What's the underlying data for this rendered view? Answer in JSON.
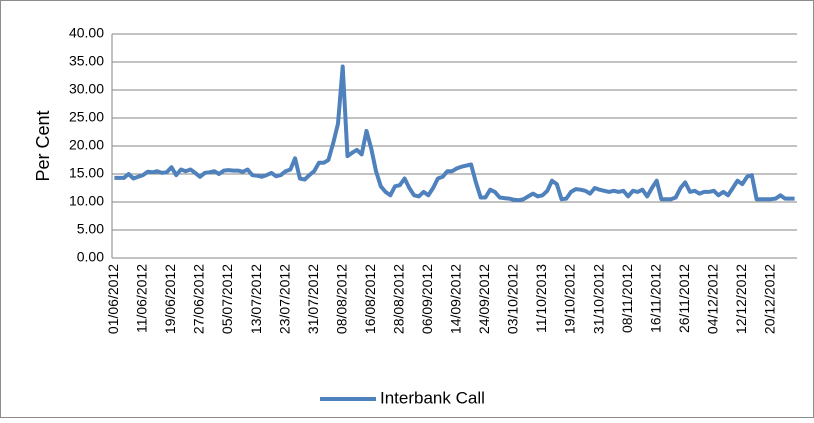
{
  "chart_data": {
    "type": "line",
    "y_label": "Per Cent",
    "categories": [
      "01/06/2012",
      null,
      null,
      null,
      null,
      null,
      "11/06/2012",
      null,
      null,
      null,
      null,
      null,
      "19/06/2012",
      null,
      null,
      null,
      null,
      null,
      "27/06/2012",
      null,
      null,
      null,
      null,
      null,
      "05/07/2012",
      null,
      null,
      null,
      null,
      null,
      "13/07/2012",
      null,
      null,
      null,
      null,
      null,
      "23/07/2012",
      null,
      null,
      null,
      null,
      null,
      "31/07/2012",
      null,
      null,
      null,
      null,
      null,
      "08/08/2012",
      null,
      null,
      null,
      null,
      null,
      "16/08/2012",
      null,
      null,
      null,
      null,
      null,
      "28/08/2012",
      null,
      null,
      null,
      null,
      null,
      "06/09/2012",
      null,
      null,
      null,
      null,
      null,
      "14/09/2012",
      null,
      null,
      null,
      null,
      null,
      "24/09/2012",
      null,
      null,
      null,
      null,
      null,
      "03/10/2012",
      null,
      null,
      null,
      null,
      null,
      "11/10/2013",
      null,
      null,
      null,
      null,
      null,
      "19/10/2012",
      null,
      null,
      null,
      null,
      null,
      "31/10/2012",
      null,
      null,
      null,
      null,
      null,
      "08/11/2012",
      null,
      null,
      null,
      null,
      null,
      "16/11/2012",
      null,
      null,
      null,
      null,
      null,
      "26/11/2012",
      null,
      null,
      null,
      null,
      null,
      "04/12/2012",
      null,
      null,
      null,
      null,
      null,
      "12/12/2012",
      null,
      null,
      null,
      null,
      null,
      "20/12/2012",
      null,
      null,
      null,
      null,
      null
    ],
    "series": [
      {
        "name": "Interbank Call",
        "color": "#4f81bd",
        "values": [
          14.3,
          14.3,
          14.3,
          15,
          14.2,
          14.5,
          14.8,
          15.4,
          15.3,
          15.5,
          15.2,
          15.3,
          16.2,
          14.8,
          15.8,
          15.5,
          15.8,
          15.2,
          14.5,
          15.2,
          15.3,
          15.5,
          15.0,
          15.6,
          15.7,
          15.6,
          15.6,
          15.4,
          15.8,
          14.8,
          14.7,
          14.5,
          14.8,
          15.2,
          14.6,
          14.8,
          15.5,
          15.8,
          17.8,
          14.2,
          14.0,
          14.8,
          15.5,
          17.0,
          17.0,
          17.5,
          20.5,
          24.0,
          34.2,
          18.2,
          18.8,
          19.3,
          18.5,
          22.7,
          19.5,
          15.5,
          12.8,
          11.8,
          11.2,
          12.8,
          13.0,
          14.2,
          12.5,
          11.2,
          11.0,
          11.8,
          11.2,
          12.5,
          14.2,
          14.5,
          15.5,
          15.5,
          16.0,
          16.3,
          16.5,
          16.7,
          13.5,
          10.8,
          10.8,
          12.2,
          11.8,
          10.8,
          10.7,
          10.6,
          10.4,
          10.3,
          10.5,
          11.0,
          11.5,
          11.0,
          11.2,
          12.0,
          13.8,
          13.2,
          10.5,
          10.6,
          11.8,
          12.3,
          12.2,
          12.0,
          11.5,
          12.5,
          12.2,
          12.0,
          11.8,
          12.0,
          11.8,
          12.0,
          11.0,
          12.0,
          11.8,
          12.2,
          11.0,
          12.5,
          13.8,
          10.5,
          10.5,
          10.5,
          10.8,
          12.5,
          13.5,
          11.8,
          12.0,
          11.5,
          11.8,
          11.8,
          12.0,
          11.2,
          11.8,
          11.2,
          12.5,
          13.8,
          13.2,
          14.5,
          14.8,
          10.5,
          10.5,
          10.5,
          10.5,
          10.6,
          11.2,
          10.6,
          10.6,
          10.6
        ]
      }
    ],
    "ylim": [
      0,
      40
    ],
    "yticks": [
      {
        "value": 0,
        "label": "0.00"
      },
      {
        "value": 5,
        "label": "5.00"
      },
      {
        "value": 10,
        "label": "10.00"
      },
      {
        "value": 15,
        "label": "15.00"
      },
      {
        "value": 20,
        "label": "20.00"
      },
      {
        "value": 25,
        "label": "25.00"
      },
      {
        "value": 30,
        "label": "30.00"
      },
      {
        "value": 35,
        "label": "35.00"
      },
      {
        "value": 40,
        "label": "40.00"
      }
    ],
    "grid": true,
    "legend": "bottom"
  }
}
